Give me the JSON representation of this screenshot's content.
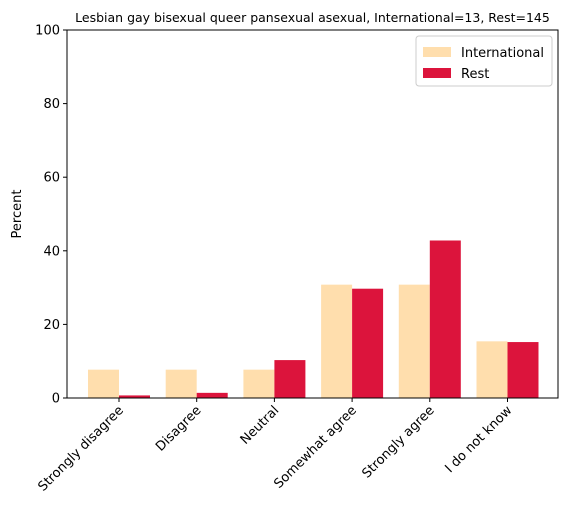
{
  "chart_data": {
    "type": "bar",
    "title": "Lesbian gay bisexual queer pansexual asexual, International=13, Rest=145",
    "xlabel": "",
    "ylabel": "Percent",
    "ylim": [
      0,
      100
    ],
    "yticks": [
      0,
      20,
      40,
      60,
      80,
      100
    ],
    "categories": [
      "Strongly disagree",
      "Disagree",
      "Neutral",
      "Somewhat agree",
      "Strongly agree",
      "I do not know"
    ],
    "series": [
      {
        "name": "International",
        "color": "#ffdead",
        "values": [
          7.7,
          7.7,
          7.7,
          30.8,
          30.8,
          15.4
        ]
      },
      {
        "name": "Rest",
        "color": "#dc143c",
        "values": [
          0.7,
          1.4,
          10.3,
          29.7,
          42.8,
          15.2
        ]
      }
    ],
    "legend": "top-right",
    "grid": false
  }
}
